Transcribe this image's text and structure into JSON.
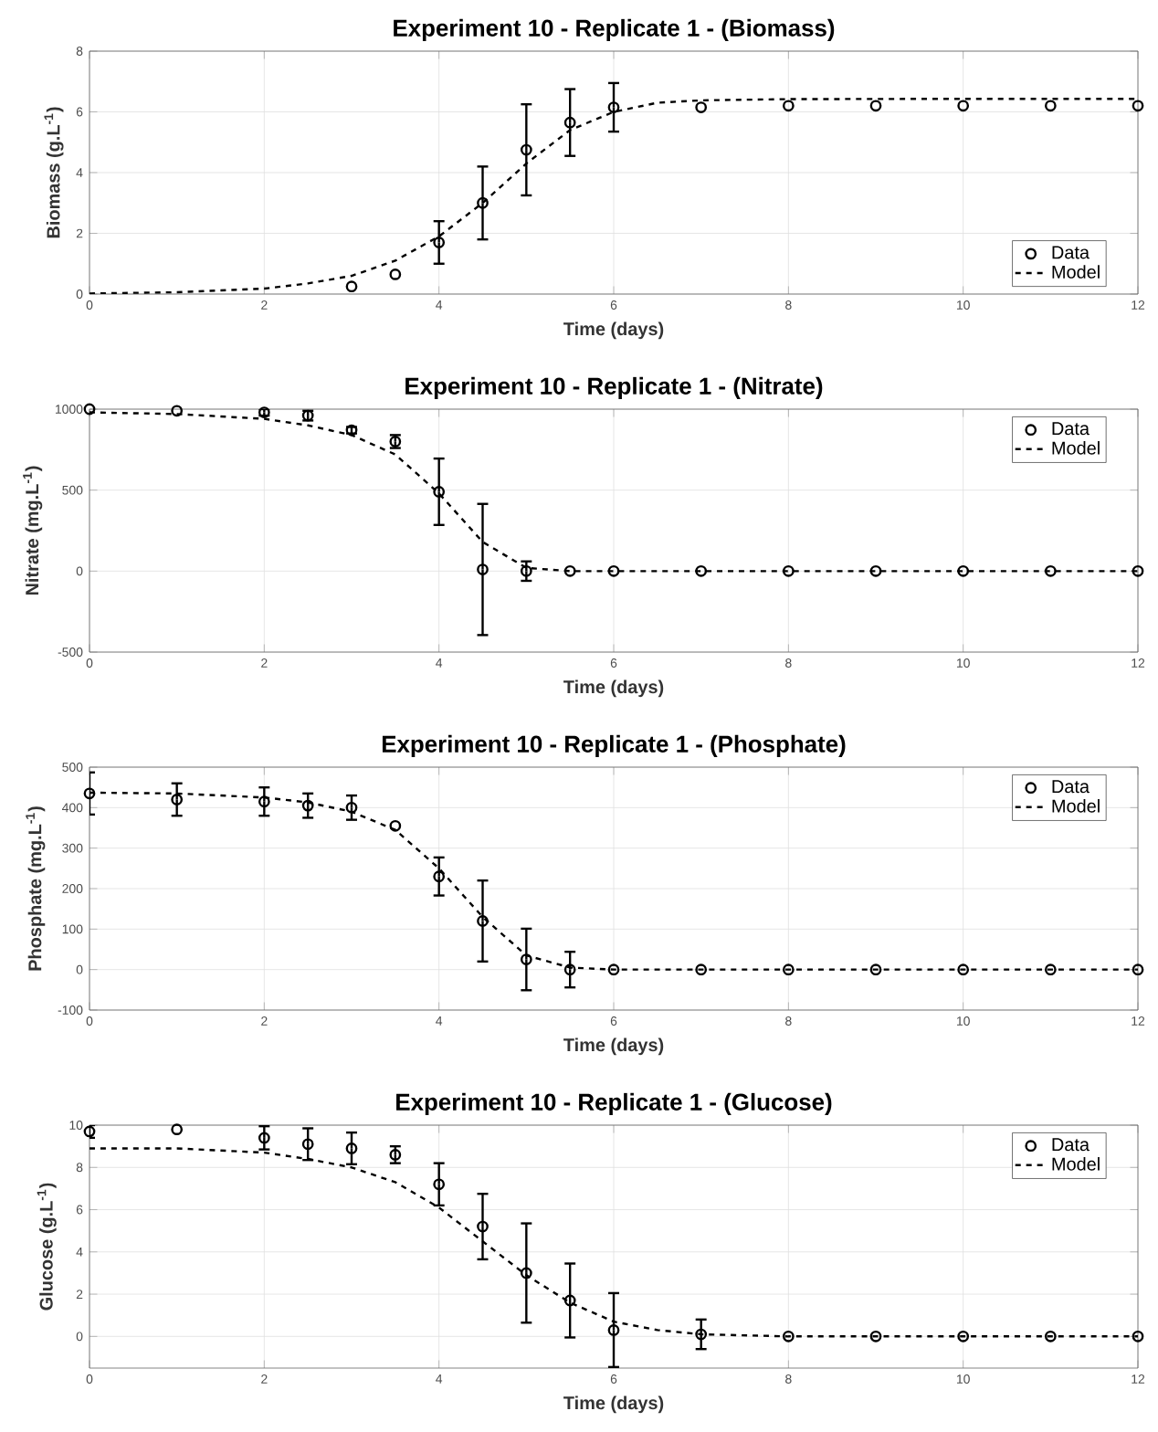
{
  "chart_data": [
    {
      "type": "line",
      "title": "Experiment 10 - Replicate 1 - (Biomass)",
      "xlabel": "Time (days)",
      "ylabel": "Biomass (g.L$^{-1}$)",
      "xlim": [
        0,
        12
      ],
      "ylim": [
        0,
        8
      ],
      "xticks": [
        0,
        2,
        4,
        6,
        8,
        10,
        12
      ],
      "yticks": [
        0,
        2,
        4,
        6,
        8
      ],
      "grid": true,
      "legend": "bottom right",
      "series": [
        {
          "name": "Data",
          "type": "scatter",
          "color": "#000000",
          "marker": "circle",
          "x": [
            3,
            3.5,
            4,
            4.5,
            5,
            5.5,
            6,
            7,
            8,
            9,
            10,
            11,
            12
          ],
          "values": [
            0.25,
            0.65,
            1.7,
            3.0,
            4.75,
            5.65,
            6.15,
            6.15,
            6.2,
            6.2,
            6.2,
            6.2,
            6.2
          ],
          "errors": [
            null,
            null,
            0.7,
            1.2,
            1.5,
            1.1,
            0.8,
            null,
            null,
            null,
            null,
            null,
            null
          ]
        },
        {
          "name": "Model",
          "type": "line",
          "color": "#000000",
          "line_style": "dashed",
          "marker": "none",
          "x": [
            0,
            1,
            2,
            2.5,
            3,
            3.5,
            4,
            4.5,
            5,
            5.5,
            6,
            6.5,
            7,
            8,
            10,
            12
          ],
          "values": [
            0.02,
            0.06,
            0.18,
            0.35,
            0.6,
            1.1,
            1.9,
            3.0,
            4.3,
            5.4,
            6.0,
            6.3,
            6.38,
            6.42,
            6.43,
            6.43
          ]
        }
      ]
    },
    {
      "type": "line",
      "title": "Experiment 10 - Replicate 1 - (Nitrate)",
      "xlabel": "Time (days)",
      "ylabel": "Nitrate (mg.L$^{-1}$)",
      "xlim": [
        0,
        12
      ],
      "ylim": [
        -500,
        1000
      ],
      "xticks": [
        0,
        2,
        4,
        6,
        8,
        10,
        12
      ],
      "yticks": [
        -500,
        0,
        500,
        1000
      ],
      "grid": true,
      "legend": "top right",
      "series": [
        {
          "name": "Data",
          "type": "scatter",
          "color": "#000000",
          "marker": "circle",
          "x": [
            0,
            1,
            2,
            2.5,
            3,
            3.5,
            4,
            4.5,
            5,
            5.5,
            6,
            7,
            8,
            9,
            10,
            11,
            12
          ],
          "values": [
            1000,
            990,
            980,
            960,
            870,
            800,
            490,
            10,
            0,
            0,
            0,
            0,
            0,
            0,
            0,
            0,
            0
          ],
          "errors": [
            null,
            null,
            20,
            30,
            20,
            40,
            205,
            405,
            60,
            null,
            null,
            null,
            null,
            null,
            null,
            null,
            null
          ]
        },
        {
          "name": "Model",
          "type": "line",
          "color": "#000000",
          "line_style": "dashed",
          "marker": "none",
          "x": [
            0,
            1,
            2,
            2.5,
            3,
            3.5,
            4,
            4.5,
            5,
            5.5,
            6,
            12
          ],
          "values": [
            980,
            970,
            940,
            900,
            840,
            720,
            480,
            180,
            20,
            0,
            0,
            0
          ]
        }
      ]
    },
    {
      "type": "line",
      "title": "Experiment 10 - Replicate 1 - (Phosphate)",
      "xlabel": "Time (days)",
      "ylabel": "Phosphate (mg.L$^{-1}$)",
      "xlim": [
        0,
        12
      ],
      "ylim": [
        -100,
        500
      ],
      "xticks": [
        0,
        2,
        4,
        6,
        8,
        10,
        12
      ],
      "yticks": [
        -100,
        0,
        100,
        200,
        300,
        400,
        500
      ],
      "grid": true,
      "legend": "top right",
      "series": [
        {
          "name": "Data",
          "type": "scatter",
          "color": "#000000",
          "marker": "circle",
          "x": [
            0,
            1,
            2,
            2.5,
            3,
            3.5,
            4,
            4.5,
            5,
            5.5,
            6,
            7,
            8,
            9,
            10,
            11,
            12
          ],
          "values": [
            435,
            420,
            415,
            405,
            400,
            355,
            230,
            120,
            25,
            0,
            0,
            0,
            0,
            0,
            0,
            0,
            0
          ],
          "errors": [
            52,
            40,
            35,
            30,
            30,
            null,
            47,
            100,
            76,
            44,
            null,
            null,
            null,
            null,
            null,
            null,
            null
          ]
        },
        {
          "name": "Model",
          "type": "line",
          "color": "#000000",
          "line_style": "dashed",
          "marker": "none",
          "x": [
            0,
            1,
            2,
            2.5,
            3,
            3.5,
            4,
            4.5,
            5,
            5.5,
            6,
            12
          ],
          "values": [
            437,
            435,
            425,
            413,
            390,
            345,
            250,
            130,
            35,
            5,
            0,
            0
          ]
        }
      ]
    },
    {
      "type": "line",
      "title": "Experiment 10 - Replicate 1 - (Glucose)",
      "xlabel": "Time (days)",
      "ylabel": "Glucose (g.L$^{-1}$)",
      "xlim": [
        0,
        12
      ],
      "ylim": [
        -1.5,
        10
      ],
      "xticks": [
        0,
        2,
        4,
        6,
        8,
        10,
        12
      ],
      "yticks": [
        0,
        2,
        4,
        6,
        8,
        10
      ],
      "grid": true,
      "legend": "top right",
      "series": [
        {
          "name": "Data",
          "type": "scatter",
          "color": "#000000",
          "marker": "circle",
          "x": [
            0,
            1,
            2,
            2.5,
            3,
            3.5,
            4,
            4.5,
            5,
            5.5,
            6,
            7,
            8,
            9,
            10,
            11,
            12
          ],
          "values": [
            9.7,
            9.8,
            9.4,
            9.1,
            8.9,
            8.6,
            7.2,
            5.2,
            3.0,
            1.7,
            0.3,
            0.1,
            0,
            0,
            0,
            0,
            0
          ],
          "errors": [
            0.3,
            null,
            0.55,
            0.75,
            0.75,
            0.4,
            1.0,
            1.55,
            2.35,
            1.75,
            1.75,
            0.7,
            null,
            null,
            null,
            null,
            null
          ]
        },
        {
          "name": "Model",
          "type": "line",
          "color": "#000000",
          "line_style": "dashed",
          "marker": "none",
          "x": [
            0,
            1,
            2,
            2.5,
            3,
            3.5,
            4,
            4.5,
            5,
            5.5,
            6,
            6.5,
            7,
            8,
            9,
            12
          ],
          "values": [
            8.9,
            8.9,
            8.7,
            8.4,
            8.0,
            7.3,
            6.1,
            4.5,
            2.9,
            1.6,
            0.7,
            0.3,
            0.1,
            0,
            0,
            0
          ]
        }
      ]
    }
  ]
}
